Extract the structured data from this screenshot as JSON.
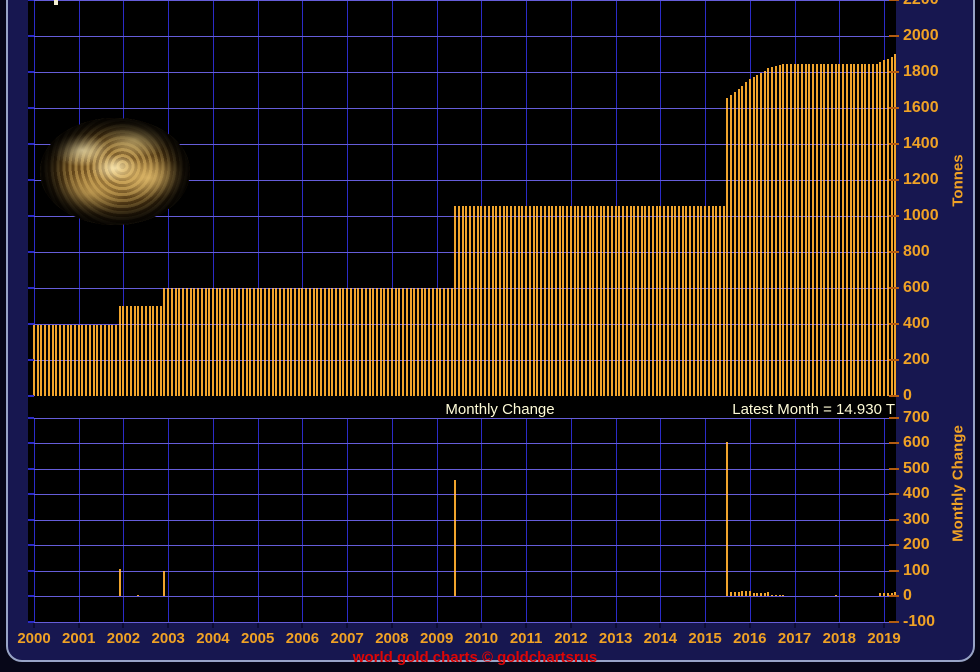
{
  "band": {
    "left_label": "Monthly Change",
    "right_label": "Latest Month = 14.930 T"
  },
  "footer": {
    "text": "world gold charts © goldchartsrus"
  },
  "axes": {
    "tonnes": {
      "title": "Tonnes",
      "ticks": [
        2200,
        2000,
        1800,
        1600,
        1400,
        1200,
        1000,
        800,
        600,
        400,
        200,
        0
      ]
    },
    "monthly": {
      "title": "Monthly Change",
      "ticks": [
        700,
        600,
        500,
        400,
        300,
        200,
        100,
        0,
        -100
      ]
    },
    "years": [
      2000,
      2001,
      2002,
      2003,
      2004,
      2005,
      2006,
      2007,
      2008,
      2009,
      2010,
      2011,
      2012,
      2013,
      2014,
      2015,
      2016,
      2017,
      2018,
      2019
    ]
  },
  "colors": {
    "background": "#171750",
    "plot": "#000000",
    "grid": "#2b2bc8",
    "bar": "#f0a42c",
    "axis_text": "#f0a225",
    "band_text": "#fffcd8",
    "footer_text": "#dd0505",
    "frame_border": "#98a4c6"
  },
  "chart_data": [
    {
      "type": "bar",
      "name": "gold-reserves-tonnes",
      "ylabel": "Tonnes",
      "ylim": [
        0,
        2200
      ],
      "x_range": [
        "2000-01",
        "2019-04"
      ],
      "grid": true,
      "segments": [
        {
          "from": "2000-01",
          "to": "2001-11",
          "value": 394
        },
        {
          "from": "2001-12",
          "to": "2002-11",
          "value": 500
        },
        {
          "from": "2002-12",
          "to": "2009-05",
          "value": 600
        },
        {
          "from": "2009-06",
          "to": "2015-06",
          "value": 1054
        },
        {
          "from": "2015-07",
          "to": "2015-07",
          "value": 1658
        },
        {
          "from": "2015-08",
          "to": "2015-08",
          "value": 1674
        },
        {
          "from": "2015-09",
          "to": "2015-09",
          "value": 1689
        },
        {
          "from": "2015-10",
          "to": "2015-10",
          "value": 1703
        },
        {
          "from": "2015-11",
          "to": "2015-11",
          "value": 1724
        },
        {
          "from": "2015-12",
          "to": "2015-12",
          "value": 1743
        },
        {
          "from": "2016-01",
          "to": "2016-01",
          "value": 1762
        },
        {
          "from": "2016-02",
          "to": "2016-02",
          "value": 1772
        },
        {
          "from": "2016-03",
          "to": "2016-03",
          "value": 1784
        },
        {
          "from": "2016-04",
          "to": "2016-04",
          "value": 1795
        },
        {
          "from": "2016-05",
          "to": "2016-05",
          "value": 1808
        },
        {
          "from": "2016-06",
          "to": "2016-06",
          "value": 1823
        },
        {
          "from": "2016-07",
          "to": "2016-07",
          "value": 1828
        },
        {
          "from": "2016-08",
          "to": "2016-08",
          "value": 1833
        },
        {
          "from": "2016-09",
          "to": "2016-09",
          "value": 1838
        },
        {
          "from": "2016-10",
          "to": "2018-11",
          "value": 1843
        },
        {
          "from": "2018-12",
          "to": "2018-12",
          "value": 1853
        },
        {
          "from": "2019-01",
          "to": "2019-01",
          "value": 1864
        },
        {
          "from": "2019-02",
          "to": "2019-02",
          "value": 1874
        },
        {
          "from": "2019-03",
          "to": "2019-03",
          "value": 1885
        },
        {
          "from": "2019-04",
          "to": "2019-04",
          "value": 1900
        }
      ]
    },
    {
      "type": "bar",
      "name": "monthly-change-tonnes",
      "ylabel": "Monthly Change",
      "ylim": [
        -100,
        700
      ],
      "latest_month_value": 14.93,
      "bars": [
        {
          "month": "2001-12",
          "value": 106
        },
        {
          "month": "2002-05",
          "value": 4
        },
        {
          "month": "2002-12",
          "value": 100
        },
        {
          "month": "2009-06",
          "value": 454
        },
        {
          "month": "2015-07",
          "value": 604
        },
        {
          "month": "2015-08",
          "value": 16
        },
        {
          "month": "2015-09",
          "value": 15
        },
        {
          "month": "2015-10",
          "value": 14
        },
        {
          "month": "2015-11",
          "value": 21
        },
        {
          "month": "2015-12",
          "value": 19
        },
        {
          "month": "2016-01",
          "value": 19
        },
        {
          "month": "2016-02",
          "value": 10
        },
        {
          "month": "2016-03",
          "value": 12
        },
        {
          "month": "2016-04",
          "value": 11
        },
        {
          "month": "2016-05",
          "value": 13
        },
        {
          "month": "2016-06",
          "value": 15
        },
        {
          "month": "2016-07",
          "value": 5
        },
        {
          "month": "2016-08",
          "value": 5
        },
        {
          "month": "2016-09",
          "value": 5
        },
        {
          "month": "2016-10",
          "value": 5
        },
        {
          "month": "2017-12",
          "value": 2
        },
        {
          "month": "2018-12",
          "value": 10
        },
        {
          "month": "2019-01",
          "value": 11
        },
        {
          "month": "2019-02",
          "value": 10
        },
        {
          "month": "2019-03",
          "value": 11
        },
        {
          "month": "2019-04",
          "value": 14.93
        }
      ]
    }
  ]
}
